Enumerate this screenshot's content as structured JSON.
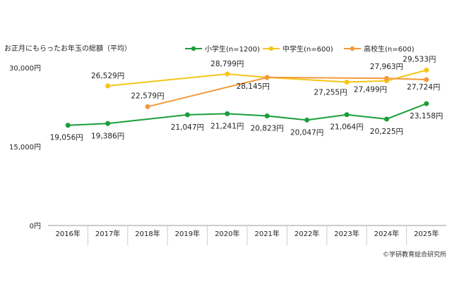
{
  "chart_data": {
    "type": "line",
    "title": "お正月にもらったお年玉の総額（平均）",
    "categories": [
      "2016年",
      "2017年",
      "2018年",
      "2019年",
      "2020年",
      "2021年",
      "2022年",
      "2023年",
      "2024年",
      "2025年"
    ],
    "yticks": [
      "0円",
      "15,000円",
      "30,000円"
    ],
    "ylim": [
      0,
      30000
    ],
    "grid": false,
    "legend_position": "top-right",
    "series": [
      {
        "name": "小学生(n=1200)",
        "color": "#1a9e3a",
        "values": [
          19056,
          19386,
          null,
          21047,
          21241,
          20823,
          20047,
          21064,
          20225,
          23158
        ],
        "labels": [
          "19,056円",
          "19,386円",
          "",
          "21,047円",
          "21,241円",
          "20,823円",
          "20,047円",
          "21,064円",
          "20,225円",
          "23,158円"
        ]
      },
      {
        "name": "中学生(n=600)",
        "color": "#f5c518",
        "values": [
          null,
          26529,
          null,
          null,
          28799,
          28145,
          null,
          27255,
          27499,
          29533
        ],
        "labels": [
          "",
          "26,529円",
          "",
          "",
          "28,799円",
          "28,145円",
          "",
          "27,255円",
          "27,499円",
          "29,533円"
        ]
      },
      {
        "name": "高校生(n=600)",
        "color": "#f29a3a",
        "values": [
          null,
          null,
          22579,
          null,
          null,
          28145,
          null,
          null,
          27963,
          27724
        ],
        "labels": [
          "",
          "",
          "22,579円",
          "",
          "",
          "",
          "",
          "",
          "27,963円",
          "27,724円"
        ]
      }
    ],
    "credit": "©学研教育総合研究所"
  }
}
